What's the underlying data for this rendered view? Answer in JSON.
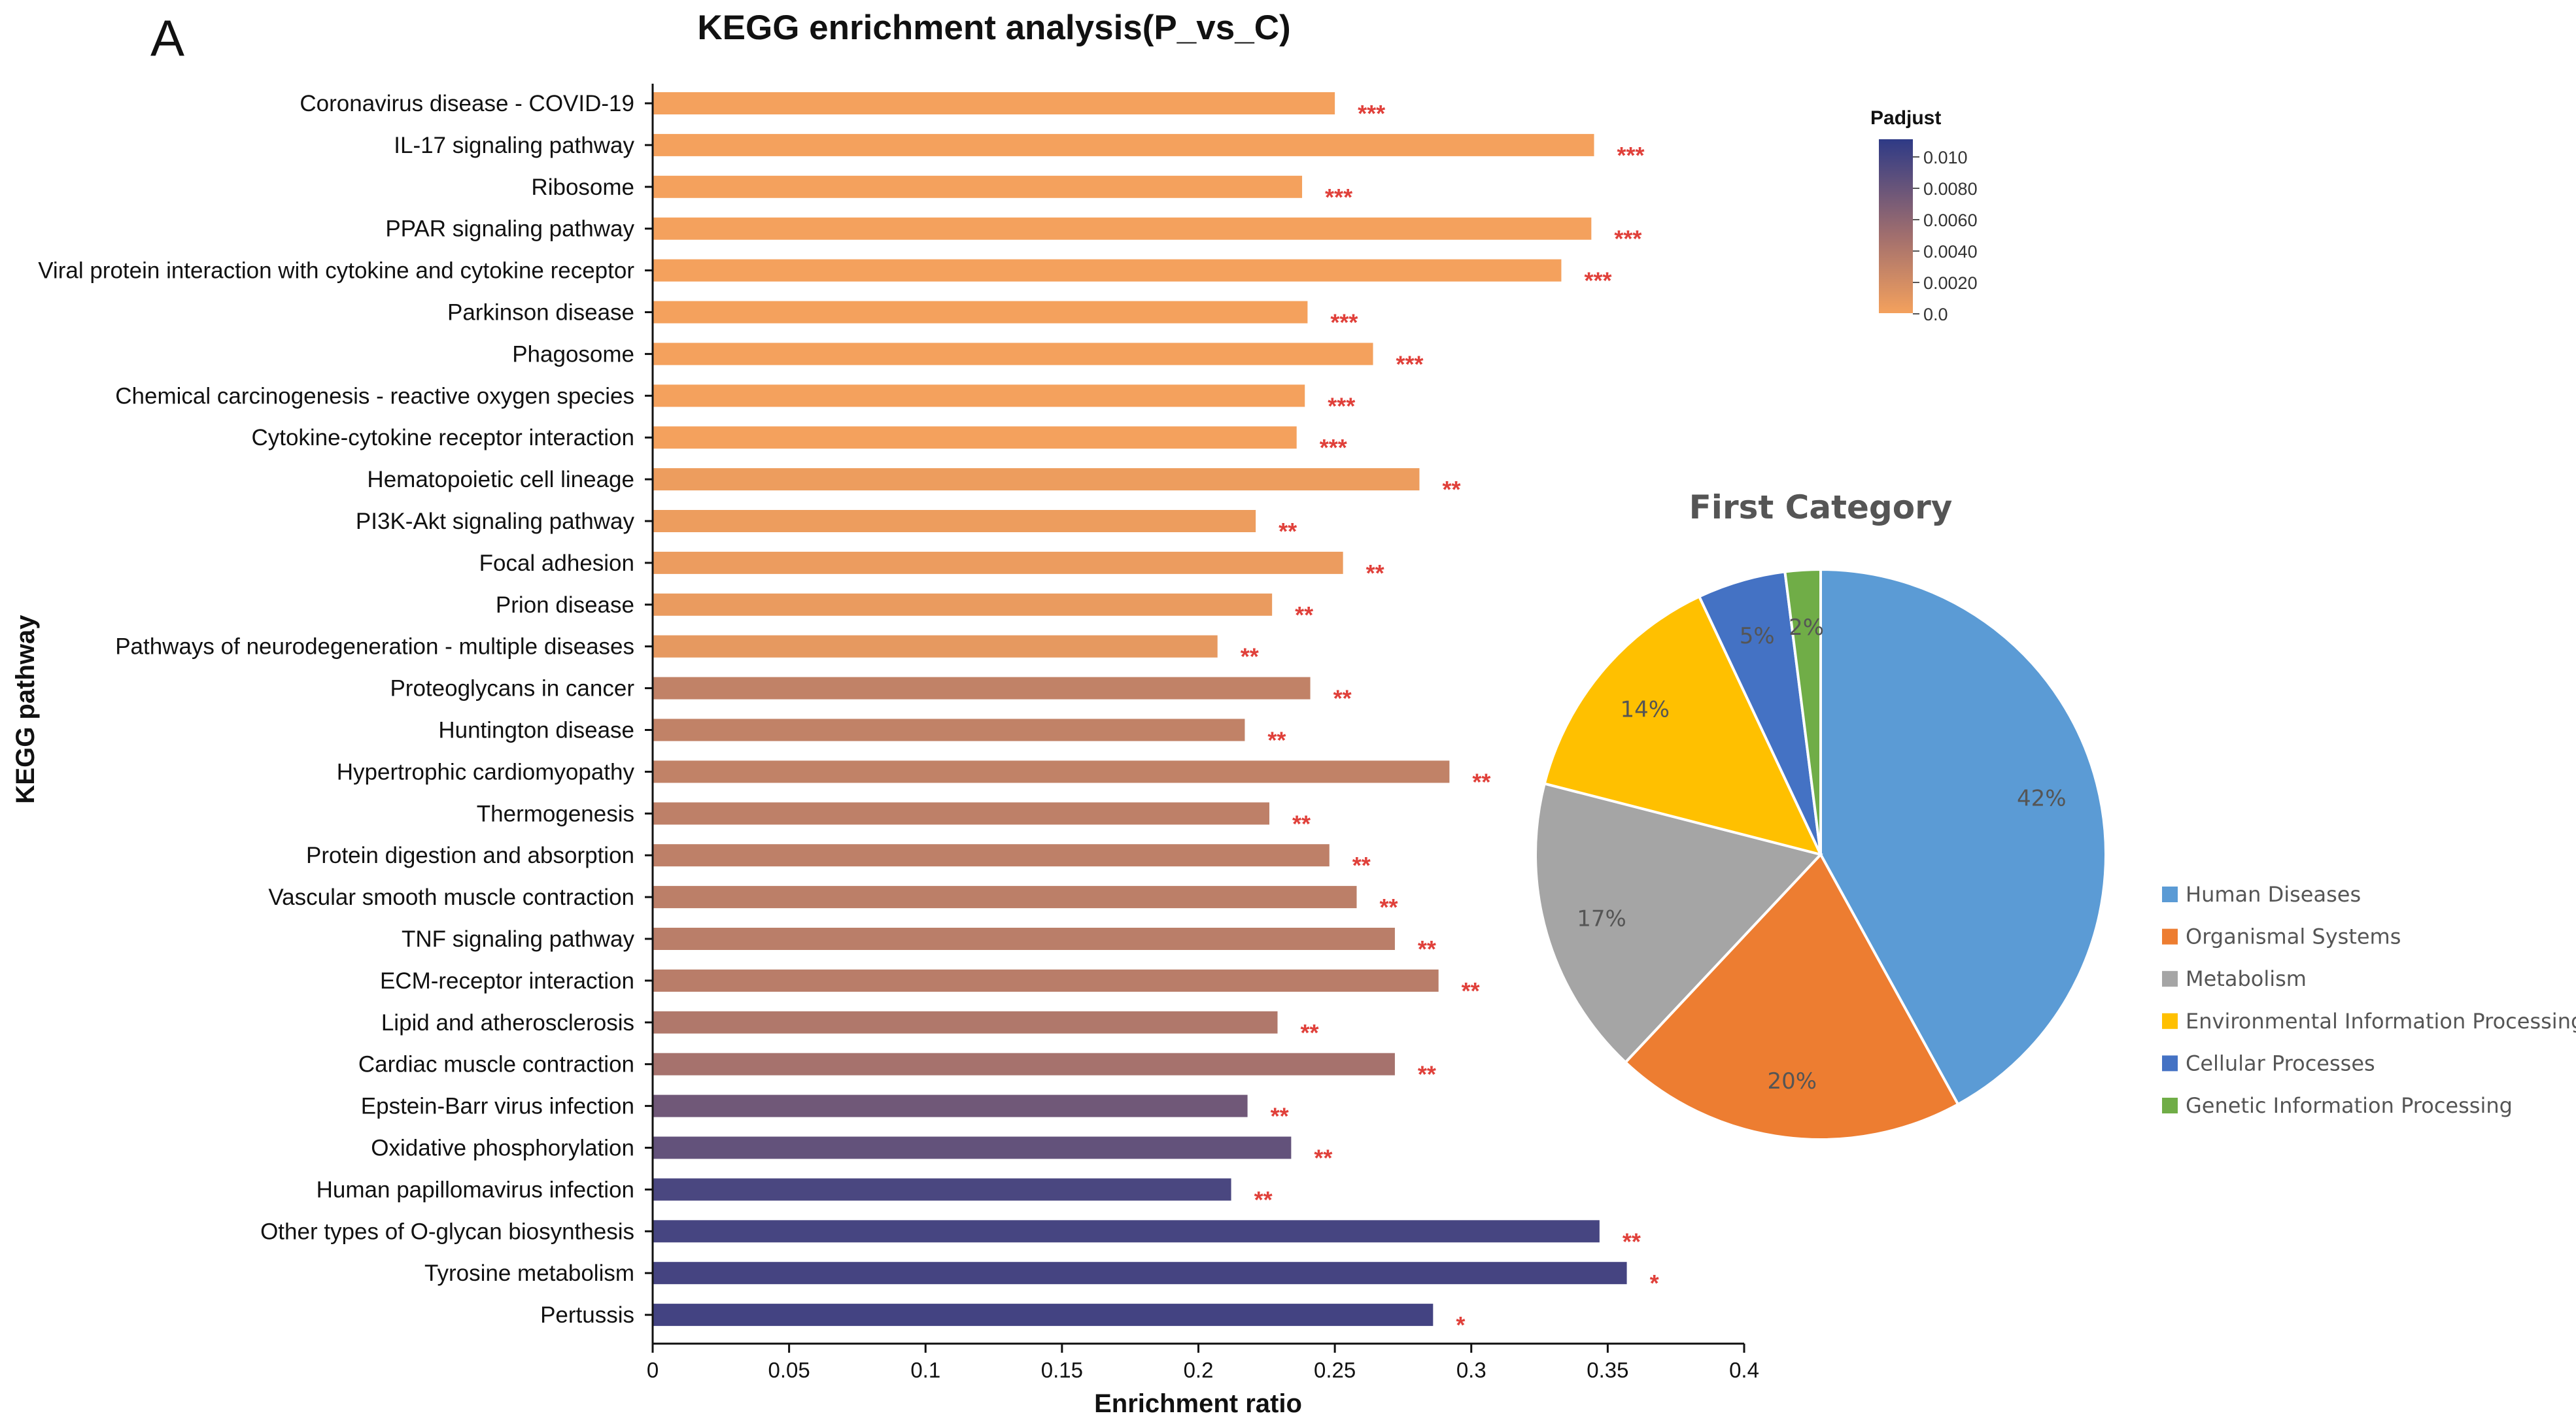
{
  "figure": {
    "panel_label": "A"
  },
  "chart_data": [
    {
      "type": "bar",
      "orientation": "horizontal",
      "title": "KEGG enrichment analysis(P_vs_C)",
      "xlabel": "Enrichment ratio",
      "ylabel": "KEGG pathway",
      "xlim": [
        0,
        0.4
      ],
      "xticks": [
        "0",
        "0.05",
        "0.1",
        "0.15",
        "0.2",
        "0.25",
        "0.3",
        "0.35",
        "0.4"
      ],
      "categories": [
        "Coronavirus disease - COVID-19",
        "IL-17 signaling pathway",
        "Ribosome",
        "PPAR signaling pathway",
        "Viral protein interaction with cytokine and cytokine receptor",
        "Parkinson disease",
        "Phagosome",
        "Chemical carcinogenesis - reactive oxygen species",
        "Cytokine-cytokine receptor interaction",
        "Hematopoietic cell lineage",
        "PI3K-Akt signaling pathway",
        "Focal adhesion",
        "Prion disease",
        "Pathways of neurodegeneration - multiple diseases",
        "Proteoglycans in cancer",
        "Huntington disease",
        "Hypertrophic cardiomyopathy",
        "Thermogenesis",
        "Protein digestion and absorption",
        "Vascular smooth muscle contraction",
        "TNF signaling pathway",
        "ECM-receptor interaction",
        "Lipid and atherosclerosis",
        "Cardiac muscle contraction",
        "Epstein-Barr virus infection",
        "Oxidative phosphorylation",
        "Human papillomavirus infection",
        "Other types of O-glycan biosynthesis",
        "Tyrosine metabolism",
        "Pertussis"
      ],
      "values": [
        0.25,
        0.345,
        0.238,
        0.344,
        0.333,
        0.24,
        0.264,
        0.239,
        0.236,
        0.281,
        0.221,
        0.253,
        0.227,
        0.207,
        0.241,
        0.217,
        0.292,
        0.226,
        0.248,
        0.258,
        0.272,
        0.288,
        0.229,
        0.272,
        0.218,
        0.234,
        0.212,
        0.347,
        0.357,
        0.286
      ],
      "significance": [
        "***",
        "***",
        "***",
        "***",
        "***",
        "***",
        "***",
        "***",
        "***",
        "**",
        "**",
        "**",
        "**",
        "**",
        "**",
        "**",
        "**",
        "**",
        "**",
        "**",
        "**",
        "**",
        "**",
        "**",
        "**",
        "**",
        "**",
        "**",
        "*",
        "*"
      ],
      "padjust": [
        0.0,
        0.0,
        0.0,
        0.0,
        0.0,
        0.0,
        0.0,
        0.0,
        0.0,
        0.0004,
        0.0004,
        0.0005,
        0.0006,
        0.0008,
        0.003,
        0.003,
        0.003,
        0.0032,
        0.0032,
        0.0033,
        0.0034,
        0.0035,
        0.004,
        0.0046,
        0.0075,
        0.0082,
        0.0095,
        0.0097,
        0.0098,
        0.0099
      ],
      "colorbar": {
        "title": "Padjust",
        "range": [
          0.0,
          0.011
        ],
        "ticks": [
          "0.010",
          "0.0080",
          "0.0060",
          "0.0040",
          "0.0020",
          "0.0"
        ],
        "low_color": "#f4a15d",
        "mid_color": "#a06e6e",
        "high_color": "#2e3a86"
      },
      "star_color": "#e0403a"
    },
    {
      "type": "pie",
      "title": "First Category",
      "slices": [
        {
          "label": "Human Diseases",
          "value": 42,
          "pct_label": "42%",
          "color": "#5b9bd5"
        },
        {
          "label": "Organismal Systems",
          "value": 20,
          "pct_label": "20%",
          "color": "#ed7d31"
        },
        {
          "label": "Metabolism",
          "value": 17,
          "pct_label": "17%",
          "color": "#a5a5a5"
        },
        {
          "label": "Environmental Information Processing",
          "value": 14,
          "pct_label": "14%",
          "color": "#ffc000"
        },
        {
          "label": "Cellular Processes",
          "value": 5,
          "pct_label": "5%",
          "color": "#4472c4"
        },
        {
          "label": "Genetic Information Processing",
          "value": 2,
          "pct_label": "2%",
          "color": "#70ad47"
        }
      ],
      "legend_position": "right"
    }
  ]
}
